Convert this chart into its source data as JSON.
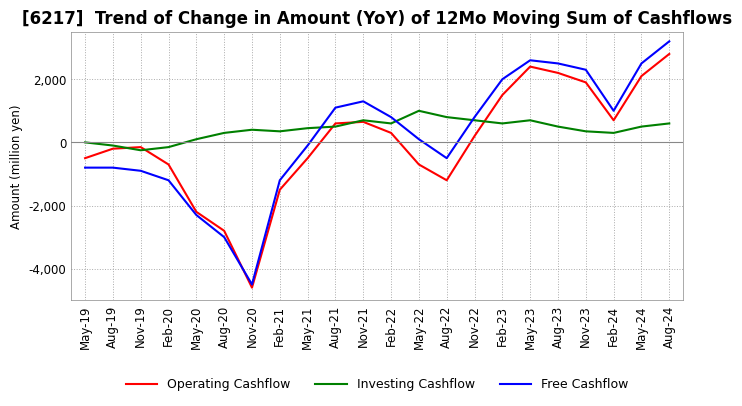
{
  "title": "[6217]  Trend of Change in Amount (YoY) of 12Mo Moving Sum of Cashflows",
  "ylabel": "Amount (million yen)",
  "x_labels": [
    "May-19",
    "Aug-19",
    "Nov-19",
    "Feb-20",
    "May-20",
    "Aug-20",
    "Nov-20",
    "Feb-21",
    "May-21",
    "Aug-21",
    "Nov-21",
    "Feb-22",
    "May-22",
    "Aug-22",
    "Nov-22",
    "Feb-23",
    "May-23",
    "Aug-23",
    "Nov-23",
    "Feb-24",
    "May-24",
    "Aug-24"
  ],
  "operating": [
    -500,
    -200,
    -150,
    -700,
    -2200,
    -2800,
    -4600,
    -1500,
    -500,
    600,
    650,
    300,
    -700,
    -1200,
    200,
    1500,
    2400,
    2200,
    1900,
    700,
    2100,
    2800
  ],
  "investing": [
    0,
    -100,
    -250,
    -150,
    100,
    300,
    400,
    350,
    450,
    500,
    700,
    600,
    1000,
    800,
    700,
    600,
    700,
    500,
    350,
    300,
    500,
    600
  ],
  "free": [
    -800,
    -800,
    -900,
    -1200,
    -2300,
    -3000,
    -4500,
    -1200,
    -100,
    1100,
    1300,
    800,
    100,
    -500,
    800,
    2000,
    2600,
    2500,
    2300,
    1000,
    2500,
    3200
  ],
  "ylim": [
    -5000,
    3500
  ],
  "yticks": [
    -4000,
    -2000,
    0,
    2000
  ],
  "operating_color": "#FF0000",
  "investing_color": "#008000",
  "free_color": "#0000FF",
  "title_fontsize": 12,
  "axis_fontsize": 8.5,
  "legend_fontsize": 9,
  "zero_line_color": "#888888"
}
